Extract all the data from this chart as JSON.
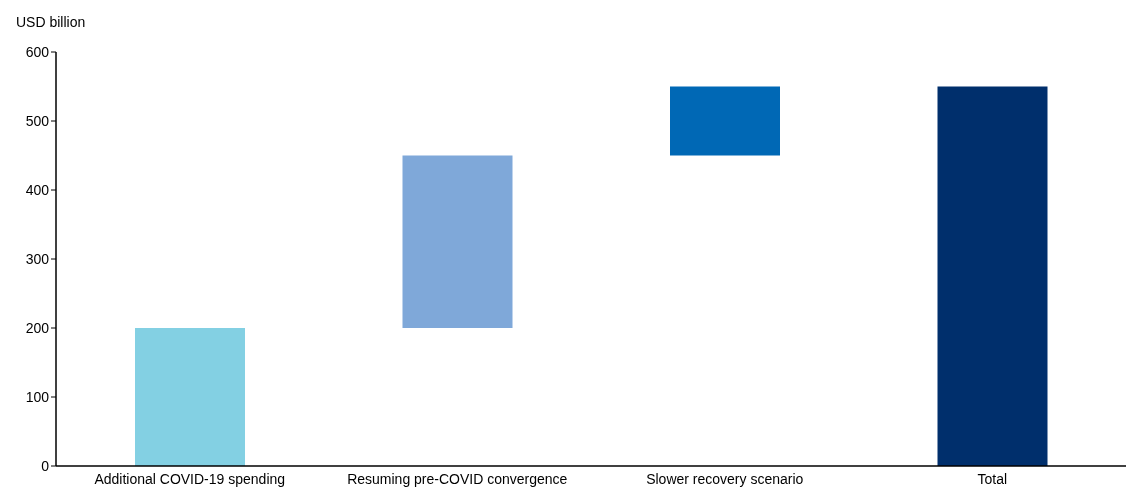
{
  "chart_data": {
    "type": "bar",
    "ylabel": "USD billion",
    "categories": [
      "Additional COVID-19 spending",
      "Resuming pre-COVID convergence",
      "Slower recovery scenario",
      "Total"
    ],
    "values": [
      200,
      250,
      100,
      550
    ],
    "base": [
      0,
      200,
      450,
      0
    ],
    "colors": [
      "#83d0e3",
      "#7fa8d9",
      "#0068b5",
      "#002f6c"
    ],
    "ylim": [
      0,
      600
    ],
    "yticks": [
      0,
      100,
      200,
      300,
      400,
      500,
      600
    ],
    "grid": false,
    "legend": false
  }
}
